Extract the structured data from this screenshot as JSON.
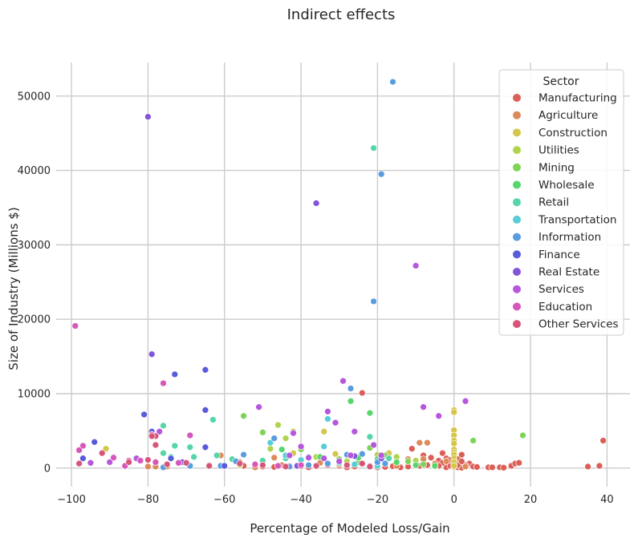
{
  "chart_data": {
    "type": "scatter",
    "title": "Indirect effects",
    "xlabel": "Percentage of Modeled Loss/Gain",
    "ylabel": "Size of Industry (Millions $)",
    "xlim": [
      -104,
      46
    ],
    "ylim": [
      -2500,
      54500
    ],
    "x_ticks": [
      -100,
      -80,
      -60,
      -40,
      -20,
      0,
      20,
      40
    ],
    "x_tick_labels": [
      "−100",
      "−80",
      "−60",
      "−40",
      "−20",
      "0",
      "20",
      "40"
    ],
    "y_ticks": [
      0,
      10000,
      20000,
      30000,
      40000,
      50000
    ],
    "y_tick_labels": [
      "0",
      "10000",
      "20000",
      "30000",
      "40000",
      "50000"
    ],
    "grid": true,
    "legend": {
      "title": "Sector",
      "placement": "top-right"
    },
    "series": [
      {
        "name": "Manufacturing",
        "color": "#db5f57",
        "points": [
          [
            -24,
            10100
          ],
          [
            -11,
            2600
          ],
          [
            -8,
            1700
          ],
          [
            -6,
            1400
          ],
          [
            -4,
            1000
          ],
          [
            -3,
            2000
          ],
          [
            -2,
            1300
          ],
          [
            -1,
            800
          ],
          [
            0,
            500
          ],
          [
            1,
            1200
          ],
          [
            2,
            1800
          ],
          [
            3,
            300
          ],
          [
            4,
            600
          ],
          [
            5,
            200
          ],
          [
            6,
            150
          ],
          [
            9,
            100
          ],
          [
            10,
            100
          ],
          [
            12,
            100
          ],
          [
            13,
            50
          ],
          [
            15,
            300
          ],
          [
            16,
            600
          ],
          [
            17,
            700
          ],
          [
            35,
            200
          ],
          [
            38,
            300
          ],
          [
            39,
            3700
          ],
          [
            -2,
            100
          ],
          [
            -1,
            300
          ],
          [
            0,
            150
          ],
          [
            -5,
            200
          ],
          [
            -7,
            400
          ],
          [
            -9,
            300
          ],
          [
            -12,
            200
          ],
          [
            -14,
            100
          ],
          [
            -16,
            250
          ],
          [
            -18,
            150
          ],
          [
            -20,
            100
          ],
          [
            -22,
            300
          ],
          [
            -26,
            200
          ],
          [
            -28,
            100
          ],
          [
            -30,
            300
          ],
          [
            -33,
            400
          ],
          [
            -36,
            200
          ],
          [
            -38,
            100
          ],
          [
            -40,
            250
          ],
          [
            -43,
            300
          ],
          [
            -47,
            150
          ],
          [
            -50,
            200
          ],
          [
            -55,
            300
          ],
          [
            -60,
            200
          ],
          [
            1,
            100
          ],
          [
            2,
            50
          ],
          [
            3,
            400
          ],
          [
            -3,
            700
          ],
          [
            -4,
            300
          ],
          [
            0,
            900
          ],
          [
            1,
            400
          ],
          [
            -1,
            1100
          ],
          [
            2,
            900
          ]
        ]
      },
      {
        "name": "Agriculture",
        "color": "#dc8a57",
        "points": [
          [
            -7,
            3400
          ],
          [
            -9,
            3400
          ],
          [
            -8,
            1200
          ],
          [
            -12,
            1200
          ],
          [
            -2,
            900
          ],
          [
            -5,
            600
          ],
          [
            -61,
            1700
          ],
          [
            -75,
            200
          ],
          [
            -78,
            200
          ],
          [
            -80,
            200
          ],
          [
            -47,
            1400
          ],
          [
            -45,
            400
          ],
          [
            -40,
            600
          ],
          [
            -35,
            700
          ],
          [
            -30,
            500
          ],
          [
            -25,
            700
          ],
          [
            -20,
            400
          ],
          [
            -15,
            300
          ],
          [
            -10,
            500
          ],
          [
            -5,
            200
          ],
          [
            0,
            300
          ],
          [
            3,
            200
          ],
          [
            -52,
            100
          ],
          [
            -56,
            800
          ]
        ]
      },
      {
        "name": "Construction",
        "color": "#d5c64a",
        "points": [
          [
            0,
            7800
          ],
          [
            0,
            7500
          ],
          [
            0,
            5100
          ],
          [
            0,
            4400
          ],
          [
            0,
            3700
          ],
          [
            0,
            3300
          ],
          [
            0,
            2500
          ],
          [
            0,
            2100
          ],
          [
            0,
            1800
          ],
          [
            0,
            1300
          ],
          [
            0,
            800
          ],
          [
            0,
            300
          ],
          [
            -34,
            4900
          ],
          [
            -91,
            2600
          ],
          [
            -42,
            2000
          ],
          [
            -31,
            1900
          ],
          [
            -17,
            2000
          ]
        ]
      },
      {
        "name": "Utilities",
        "color": "#b0d44d",
        "points": [
          [
            -46,
            5800
          ],
          [
            -48,
            2600
          ],
          [
            -44,
            4000
          ],
          [
            -42,
            4900
          ],
          [
            -36,
            1500
          ],
          [
            -28,
            900
          ],
          [
            -20,
            1800
          ],
          [
            -15,
            1500
          ],
          [
            -10,
            1000
          ],
          [
            -56,
            400
          ],
          [
            -64,
            400
          ]
        ]
      },
      {
        "name": "Mining",
        "color": "#7ed457",
        "points": [
          [
            -55,
            7000
          ],
          [
            -50,
            4800
          ],
          [
            -40,
            2500
          ],
          [
            -22,
            2700
          ],
          [
            -18,
            1700
          ],
          [
            -12,
            900
          ],
          [
            -8,
            500
          ],
          [
            5,
            3700
          ],
          [
            18,
            4400
          ],
          [
            -30,
            1200
          ],
          [
            -25,
            800
          ]
        ]
      },
      {
        "name": "Wholesale",
        "color": "#56d66b",
        "points": [
          [
            -27,
            9000
          ],
          [
            -22,
            7400
          ],
          [
            -45,
            2500
          ],
          [
            -35,
            1500
          ],
          [
            -25,
            1400
          ],
          [
            -20,
            1200
          ],
          [
            -15,
            800
          ],
          [
            -10,
            400
          ],
          [
            -5,
            300
          ]
        ]
      },
      {
        "name": "Retail",
        "color": "#56d6a8",
        "points": [
          [
            -21,
            43000
          ],
          [
            -63,
            6500
          ],
          [
            -76,
            5700
          ],
          [
            -73,
            3000
          ],
          [
            -69,
            2800
          ],
          [
            -68,
            1500
          ],
          [
            -74,
            1500
          ],
          [
            -76,
            2000
          ],
          [
            -62,
            1700
          ],
          [
            -58,
            1200
          ],
          [
            -50,
            1000
          ],
          [
            -44,
            1300
          ],
          [
            -38,
            1500
          ],
          [
            -22,
            4200
          ],
          [
            -17,
            1300
          ],
          [
            -20,
            400
          ]
        ]
      },
      {
        "name": "Transportation",
        "color": "#57cdd8",
        "points": [
          [
            -33,
            6600
          ],
          [
            -34,
            2900
          ],
          [
            -48,
            3400
          ],
          [
            -44,
            1700
          ],
          [
            -40,
            1100
          ],
          [
            -30,
            700
          ],
          [
            -26,
            500
          ],
          [
            -20,
            300
          ]
        ]
      },
      {
        "name": "Information",
        "color": "#5a9ce0",
        "points": [
          [
            -16,
            51900
          ],
          [
            -19,
            39500
          ],
          [
            -21,
            22400
          ],
          [
            -27,
            10700
          ],
          [
            -47,
            4000
          ],
          [
            -55,
            1800
          ],
          [
            -57,
            900
          ],
          [
            -61,
            300
          ],
          [
            -69,
            300
          ],
          [
            -76,
            100
          ],
          [
            -43,
            200
          ],
          [
            -38,
            400
          ],
          [
            -33,
            600
          ],
          [
            -28,
            1800
          ],
          [
            -24,
            1900
          ],
          [
            -20,
            800
          ],
          [
            -18,
            600
          ]
        ]
      },
      {
        "name": "Finance",
        "color": "#5a5bdb",
        "points": [
          [
            -65,
            13200
          ],
          [
            -73,
            12600
          ],
          [
            -65,
            7800
          ],
          [
            -81,
            7200
          ],
          [
            -65,
            2800
          ],
          [
            -79,
            4900
          ],
          [
            -94,
            3500
          ],
          [
            -97,
            1300
          ],
          [
            -74,
            1300
          ],
          [
            -60,
            300
          ]
        ]
      },
      {
        "name": "Real Estate",
        "color": "#8155d9",
        "points": [
          [
            -80,
            47200
          ],
          [
            -36,
            35600
          ],
          [
            -79,
            15300
          ],
          [
            -71,
            800
          ],
          [
            -41,
            300
          ],
          [
            -26,
            1600
          ],
          [
            -19,
            1300
          ]
        ]
      },
      {
        "name": "Services",
        "color": "#b657dc",
        "points": [
          [
            -10,
            27200
          ],
          [
            -29,
            11700
          ],
          [
            -51,
            8200
          ],
          [
            -33,
            7600
          ],
          [
            -8,
            8200
          ],
          [
            3,
            9000
          ],
          [
            -4,
            7000
          ],
          [
            -31,
            6100
          ],
          [
            -26,
            4900
          ],
          [
            -42,
            4700
          ],
          [
            -40,
            2900
          ],
          [
            -43,
            1700
          ],
          [
            -38,
            1400
          ],
          [
            -34,
            1300
          ],
          [
            -30,
            900
          ],
          [
            -27,
            1700
          ],
          [
            -21,
            3100
          ],
          [
            -19,
            1700
          ],
          [
            -77,
            4900
          ],
          [
            -83,
            1300
          ],
          [
            -86,
            200
          ],
          [
            -90,
            800
          ],
          [
            -95,
            700
          ]
        ]
      },
      {
        "name": "Education",
        "color": "#d657b9",
        "points": [
          [
            -99,
            19100
          ],
          [
            -76,
            11400
          ],
          [
            -79,
            4500
          ],
          [
            -69,
            4400
          ],
          [
            -97,
            3000
          ],
          [
            -98,
            2400
          ],
          [
            -89,
            1400
          ],
          [
            -82,
            1000
          ],
          [
            -85,
            1000
          ],
          [
            -78,
            800
          ],
          [
            -86,
            300
          ],
          [
            -72,
            700
          ],
          [
            -52,
            500
          ],
          [
            -46,
            300
          ],
          [
            -40,
            400
          ]
        ]
      },
      {
        "name": "Other Services",
        "color": "#d8557a",
        "points": [
          [
            -78,
            4300
          ],
          [
            -79,
            4300
          ],
          [
            -78,
            3100
          ],
          [
            -92,
            2000
          ],
          [
            -98,
            600
          ],
          [
            -85,
            800
          ],
          [
            -80,
            1100
          ],
          [
            -75,
            500
          ],
          [
            -70,
            700
          ],
          [
            -64,
            300
          ],
          [
            -56,
            600
          ],
          [
            -50,
            400
          ],
          [
            -44,
            200
          ],
          [
            -36,
            300
          ],
          [
            -28,
            400
          ],
          [
            -24,
            600
          ],
          [
            -22,
            200
          ]
        ]
      }
    ]
  }
}
